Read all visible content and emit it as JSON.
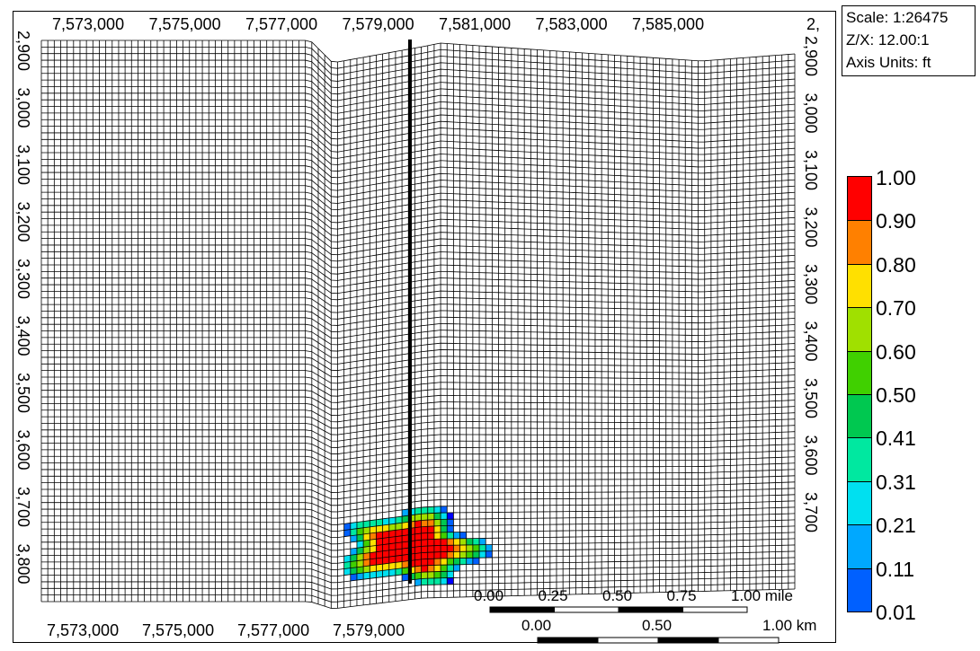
{
  "scale_box": {
    "scale": "Scale: 1:26475",
    "zx": "Z/X: 12.00:1",
    "axis_units": "Axis Units: ft"
  },
  "x_axis_top": [
    "7,573,000",
    "7,575,000",
    "7,577,000",
    "7,579,000",
    "7,581,000",
    "7,583,000",
    "7,585,000"
  ],
  "x_axis_bottom": [
    "7,573,000",
    "7,575,000",
    "7,577,000",
    "7,579,000"
  ],
  "y_axis_left": [
    "2,900",
    "3,000",
    "3,100",
    "3,200",
    "3,300",
    "3,400",
    "3,500",
    "3,600",
    "3,700",
    "3,800"
  ],
  "y_axis_right": [
    "2,900",
    "3,000",
    "3,100",
    "3,200",
    "3,300",
    "3,400",
    "3,500",
    "3,600",
    "3,700"
  ],
  "top_right_partial_label": "2,",
  "scalebar_miles": [
    "0.00",
    "0.25",
    "0.50",
    "0.75",
    "1.00 mile"
  ],
  "scalebar_km": [
    "0.00",
    "0.50",
    "1.00 km"
  ],
  "legend": [
    {
      "label": "1.00",
      "color": "#ff0000"
    },
    {
      "label": "0.90",
      "color": "#ff8000"
    },
    {
      "label": "0.80",
      "color": "#ffe000"
    },
    {
      "label": "0.70",
      "color": "#a0e000"
    },
    {
      "label": "0.60",
      "color": "#40d000"
    },
    {
      "label": "0.50",
      "color": "#00c850"
    },
    {
      "label": "0.41",
      "color": "#00e8a0"
    },
    {
      "label": "0.31",
      "color": "#00e0f0"
    },
    {
      "label": "0.21",
      "color": "#00a8ff"
    },
    {
      "label": "0.11",
      "color": "#0060ff"
    },
    {
      "label": "0.01",
      "color": "#0000ff"
    }
  ],
  "colors": {
    "plume_core": "#ff0000",
    "plume_edge": "#0000ff",
    "grid_line": "#000000"
  }
}
